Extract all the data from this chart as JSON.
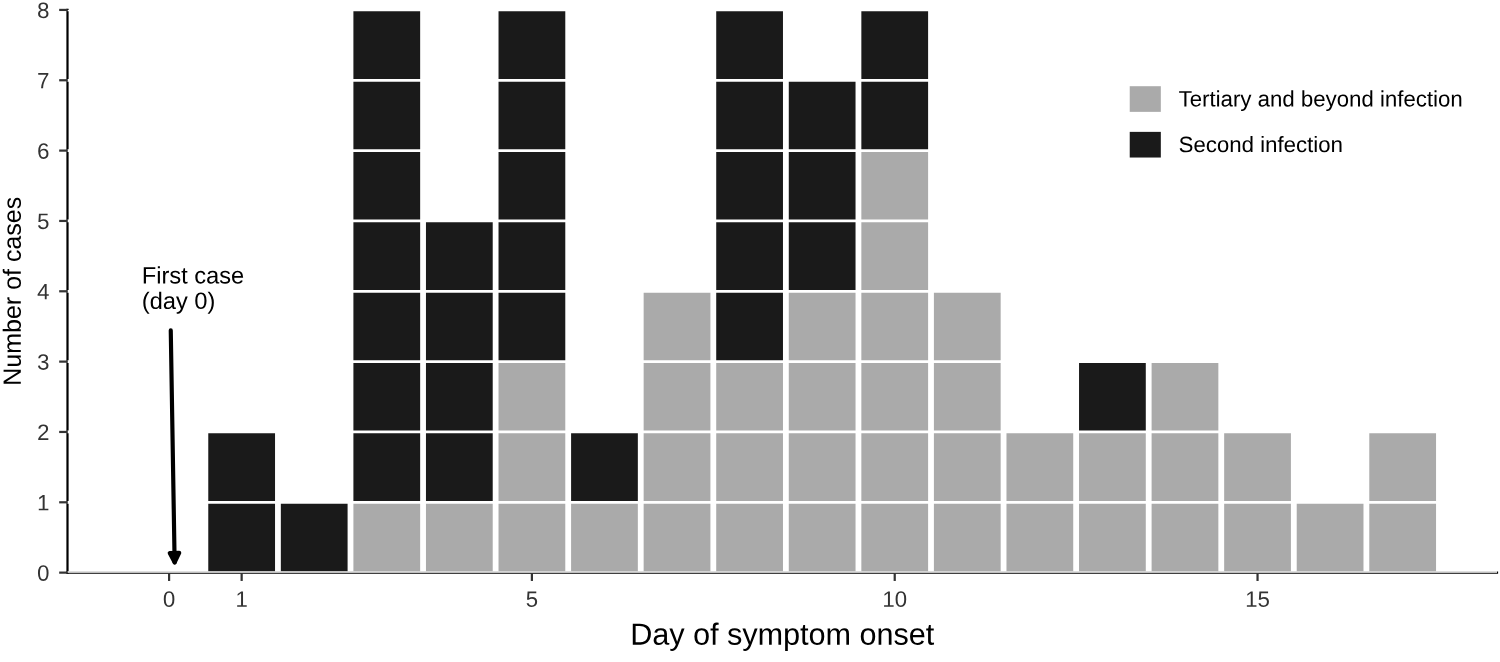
{
  "chart_data": {
    "type": "bar",
    "stacked": true,
    "xlabel": "Day of symptom onset",
    "ylabel": "Number of cases",
    "x": [
      1,
      2,
      3,
      4,
      5,
      6,
      7,
      8,
      9,
      10,
      11,
      12,
      13,
      14,
      15,
      16,
      17
    ],
    "series": [
      {
        "name": "Tertiary and beyond infection",
        "color": "#aaaaaa",
        "values": [
          0,
          0,
          1,
          1,
          3,
          1,
          4,
          3,
          4,
          6,
          4,
          2,
          2,
          3,
          2,
          1,
          2
        ]
      },
      {
        "name": "Second infection",
        "color": "#1a1a1a",
        "values": [
          2,
          1,
          7,
          4,
          5,
          1,
          0,
          5,
          3,
          2,
          0,
          0,
          1,
          0,
          0,
          0,
          0
        ]
      }
    ],
    "xlim": [
      -1.4,
      18.3
    ],
    "xticks": [
      0,
      1,
      5,
      10,
      15
    ],
    "ylim": [
      0,
      8
    ],
    "yticks": [
      0,
      1,
      2,
      3,
      4,
      5,
      6,
      7,
      8
    ],
    "grid": "y",
    "legend": "top right",
    "annotations": [
      "First case\n(day 0)"
    ]
  }
}
